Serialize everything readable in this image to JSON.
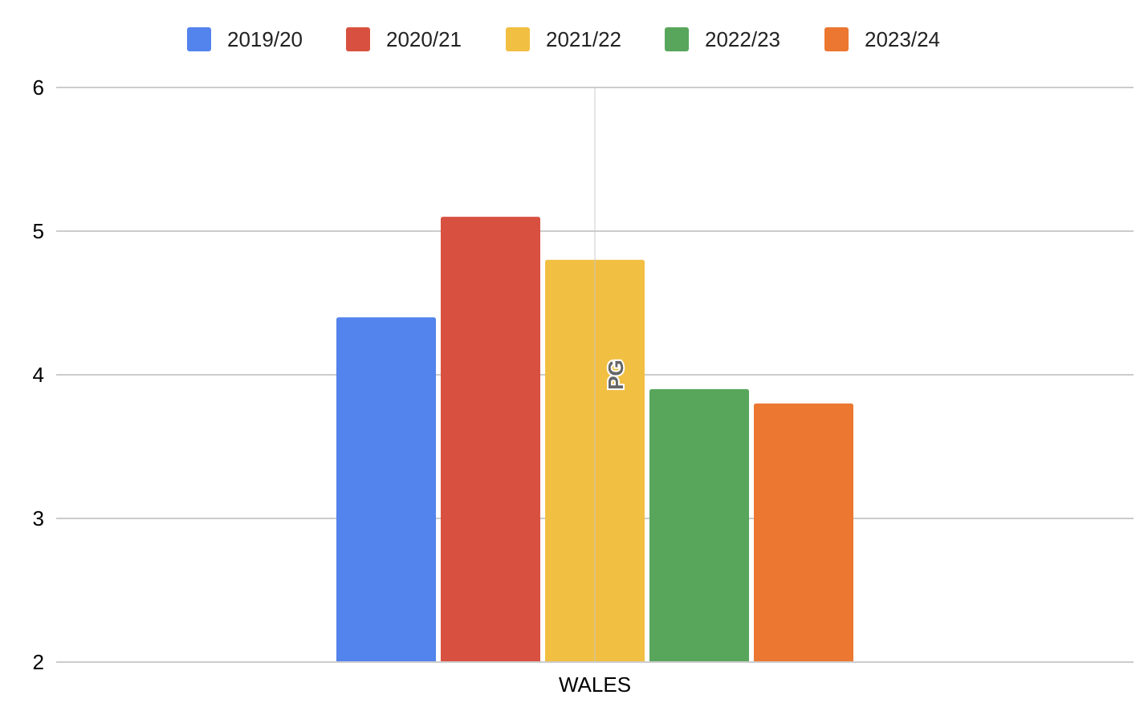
{
  "chart_data": {
    "type": "bar",
    "categories": [
      "WALES"
    ],
    "series": [
      {
        "name": "2019/20",
        "values": [
          4.4
        ],
        "color": "#5383EC"
      },
      {
        "name": "2020/21",
        "values": [
          5.1
        ],
        "color": "#D85140"
      },
      {
        "name": "2021/22",
        "values": [
          4.8
        ],
        "color": "#F1BF42"
      },
      {
        "name": "2022/23",
        "values": [
          3.9
        ],
        "color": "#58A65C"
      },
      {
        "name": "2023/24",
        "values": [
          3.8
        ],
        "color": "#EB7730"
      }
    ],
    "ylim": [
      2,
      6
    ],
    "yticks": [
      "2",
      "3",
      "4",
      "5",
      "6"
    ],
    "annotation": "PG",
    "title": "",
    "xlabel": "",
    "ylabel": "",
    "legend_position": "top",
    "grid": true
  }
}
